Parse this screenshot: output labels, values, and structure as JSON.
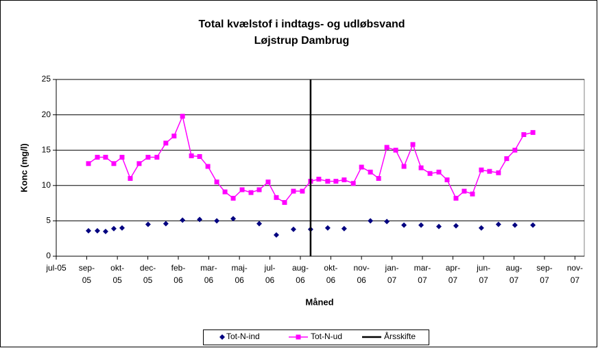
{
  "chart_data": {
    "type": "line",
    "title": [
      "Total kvælstof i indtags- og udløbsvand",
      "Løjstrup Dambrug"
    ],
    "xlabel": "Måned",
    "ylabel": "Konc (mg/l)",
    "xlim": [
      2005.5,
      2007.875
    ],
    "xticks": [
      {
        "value": 2005.5,
        "label": "jul-05"
      },
      {
        "value": 2005.637,
        "label": "sep-05"
      },
      {
        "value": 2005.775,
        "label": "okt-05"
      },
      {
        "value": 2005.912,
        "label": "dec-05"
      },
      {
        "value": 2006.049,
        "label": "feb-06"
      },
      {
        "value": 2006.186,
        "label": "mar-06"
      },
      {
        "value": 2006.324,
        "label": "maj-06"
      },
      {
        "value": 2006.461,
        "label": "jul-06"
      },
      {
        "value": 2006.598,
        "label": "aug-06"
      },
      {
        "value": 2006.735,
        "label": "okt-06"
      },
      {
        "value": 2006.873,
        "label": "nov-06"
      },
      {
        "value": 2007.01,
        "label": "jan-07"
      },
      {
        "value": 2007.147,
        "label": "mar-07"
      },
      {
        "value": 2007.284,
        "label": "apr-07"
      },
      {
        "value": 2007.422,
        "label": "jun-07"
      },
      {
        "value": 2007.559,
        "label": "aug-07"
      },
      {
        "value": 2007.696,
        "label": "sep-07"
      },
      {
        "value": 2007.833,
        "label": "nov-07"
      }
    ],
    "ylim": [
      0,
      25
    ],
    "yticks": [
      0,
      5,
      10,
      15,
      20,
      25
    ],
    "grid": true,
    "legend": "bottom",
    "series": [
      {
        "name": "Tot-N-ind",
        "color": "#000080",
        "marker": "diamond",
        "line": false,
        "x": [
          2005.645,
          2005.685,
          2005.722,
          2005.759,
          2005.796,
          2005.913,
          2005.993,
          2006.068,
          2006.145,
          2006.222,
          2006.296,
          2006.413,
          2006.49,
          2006.567,
          2006.644,
          2006.721,
          2006.795,
          2006.913,
          2006.987,
          2007.064,
          2007.141,
          2007.221,
          2007.298,
          2007.412,
          2007.489,
          2007.563,
          2007.644
        ],
        "values": [
          3.6,
          3.6,
          3.5,
          3.9,
          4.0,
          4.5,
          4.6,
          5.1,
          5.2,
          5.0,
          5.3,
          4.6,
          3.0,
          3.8,
          3.8,
          4.0,
          3.9,
          5.0,
          4.9,
          4.4,
          4.4,
          4.2,
          4.3,
          4.0,
          4.5,
          4.4,
          4.4
        ]
      },
      {
        "name": "Tot-N-ud",
        "color": "#ff00ff",
        "marker": "square",
        "line": true,
        "x": [
          2005.645,
          2005.685,
          2005.722,
          2005.759,
          2005.796,
          2005.833,
          2005.873,
          2005.913,
          2005.953,
          2005.993,
          2006.03,
          2006.068,
          2006.108,
          2006.145,
          2006.182,
          2006.222,
          2006.259,
          2006.296,
          2006.336,
          2006.376,
          2006.413,
          2006.453,
          2006.49,
          2006.527,
          2006.567,
          2006.607,
          2006.644,
          2006.681,
          2006.721,
          2006.758,
          2006.795,
          2006.836,
          2006.873,
          2006.913,
          2006.95,
          2006.987,
          2007.027,
          2007.064,
          2007.104,
          2007.141,
          2007.181,
          2007.221,
          2007.258,
          2007.298,
          2007.335,
          2007.372,
          2007.412,
          2007.449,
          2007.489,
          2007.526,
          2007.563,
          2007.603,
          2007.644
        ],
        "values": [
          13.1,
          14,
          14,
          13.1,
          14,
          11,
          13.1,
          14,
          14,
          16,
          17,
          19.8,
          14.2,
          14.1,
          12.7,
          10.5,
          9.1,
          8.2,
          9.4,
          9,
          9.4,
          10.5,
          8.3,
          7.6,
          9.2,
          9.2,
          10.6,
          10.9,
          10.6,
          10.6,
          10.8,
          10.3,
          12.6,
          11.9,
          11,
          15.4,
          15,
          12.7,
          15.8,
          12.5,
          11.7,
          11.9,
          10.8,
          8.2,
          9.2,
          8.8,
          12.2,
          12,
          11.8,
          13.8,
          15,
          17.2,
          17.5
        ]
      },
      {
        "name": "Årsskifte",
        "color": "#000000",
        "marker": "none",
        "line": true,
        "x": [
          2006.644,
          2006.644
        ],
        "values": [
          0,
          25
        ]
      }
    ]
  }
}
